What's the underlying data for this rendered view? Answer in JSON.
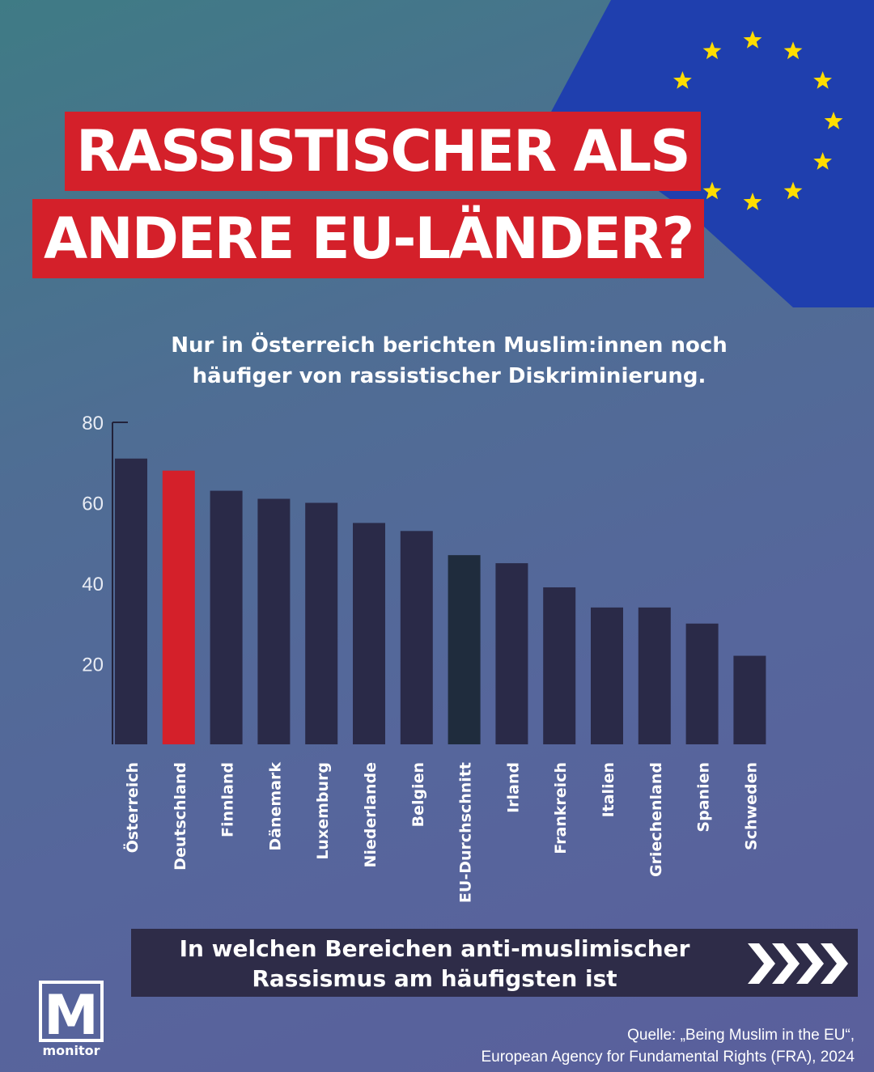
{
  "headline": {
    "line1": "RASSISTISCHER ALS",
    "line2": "ANDERE EU-LÄNDER?"
  },
  "subtitle": {
    "line1": "Nur in Österreich berichten Muslim:innen noch",
    "line2": "häufiger von rassistischer Diskriminierung."
  },
  "chart_data": {
    "type": "bar",
    "title": "",
    "xlabel": "",
    "ylabel": "",
    "ylim": [
      0,
      80
    ],
    "yticks": [
      20,
      40,
      60,
      80
    ],
    "categories": [
      "Österreich",
      "Deutschland",
      "Finnland",
      "Dänemark",
      "Luxemburg",
      "Niederlande",
      "Belgien",
      "EU-Durchschnitt",
      "Irland",
      "Frankreich",
      "Italien",
      "Griechenland",
      "Spanien",
      "Schweden"
    ],
    "values": [
      71,
      68,
      63,
      61,
      60,
      55,
      53,
      47,
      45,
      39,
      34,
      34,
      30,
      22
    ],
    "highlight": {
      "Deutschland": "#d4202a",
      "EU-Durchschnitt": "#1f2c3d"
    },
    "bar_color": "#2a2a48"
  },
  "cta": {
    "line1": "In welchen Bereichen anti-muslimischer",
    "line2": "Rassismus am häufigsten ist",
    "icon": "chevrons-right-icon"
  },
  "logo": {
    "letter": "M",
    "label": "monitor"
  },
  "source": {
    "line1": "Quelle: „Being Muslim in the EU“,",
    "line2": "European Agency for Fundamental Rights (FRA), 2024"
  },
  "colors": {
    "accent_red": "#d4202a",
    "eu_blue": "#1f3fae",
    "eu_star": "#ffdd00"
  }
}
